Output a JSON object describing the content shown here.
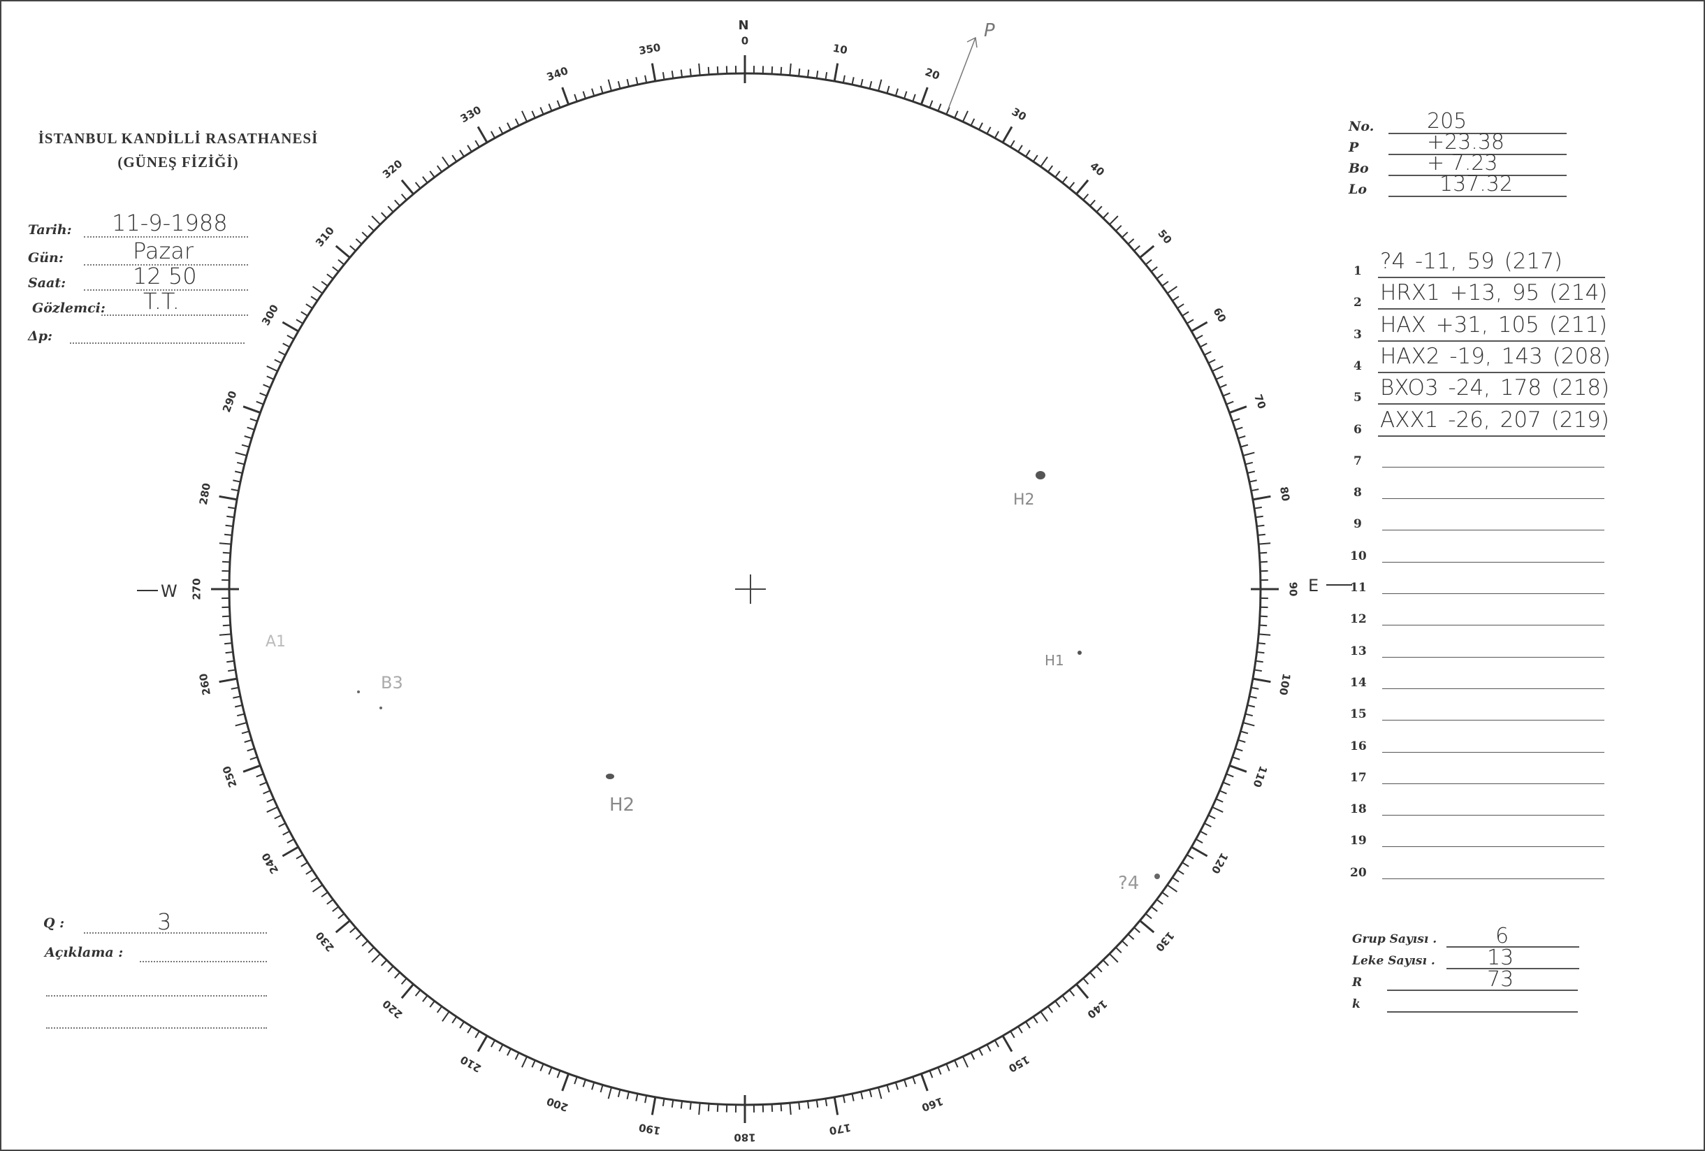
{
  "header": {
    "title": "İSTANBUL KANDİLLİ RASATHANESİ",
    "subtitle": "(GÜNEŞ FİZİĞİ)"
  },
  "observation": {
    "fields": [
      {
        "label": "Tarih:",
        "value": "11-9-1988"
      },
      {
        "label": "Gün:",
        "value": "Pazar"
      },
      {
        "label": "Saat:",
        "value": "12 50"
      },
      {
        "label": "Gözlemci:",
        "value": "T.T."
      },
      {
        "label": "Δp:",
        "value": ""
      }
    ]
  },
  "params": [
    {
      "label": "No.",
      "value": "205"
    },
    {
      "label": "P",
      "value": "+23.38"
    },
    {
      "label": "Bo",
      "value": "+ 7.23"
    },
    {
      "label": "Lo",
      "value": "137.32"
    }
  ],
  "groups": [
    {
      "n": "1",
      "value": "?4   -11, 59 (217)"
    },
    {
      "n": "2",
      "value": "HRX1 +13, 95 (214)"
    },
    {
      "n": "3",
      "value": "HAX  +31, 105 (211)"
    },
    {
      "n": "4",
      "value": "HAX2 -19, 143 (208)"
    },
    {
      "n": "5",
      "value": "BXO3 -24, 178 (218)"
    },
    {
      "n": "6",
      "value": "AXX1 -26, 207 (219)"
    },
    {
      "n": "7",
      "value": ""
    },
    {
      "n": "8",
      "value": ""
    },
    {
      "n": "9",
      "value": ""
    },
    {
      "n": "10",
      "value": ""
    },
    {
      "n": "11",
      "value": ""
    },
    {
      "n": "12",
      "value": ""
    },
    {
      "n": "13",
      "value": ""
    },
    {
      "n": "14",
      "value": ""
    },
    {
      "n": "15",
      "value": ""
    },
    {
      "n": "16",
      "value": ""
    },
    {
      "n": "17",
      "value": ""
    },
    {
      "n": "18",
      "value": ""
    },
    {
      "n": "19",
      "value": ""
    },
    {
      "n": "20",
      "value": ""
    }
  ],
  "summary": [
    {
      "label": "Grup Sayısı .",
      "value": "6"
    },
    {
      "label": "Leke Sayısı .",
      "value": "13"
    },
    {
      "label": "R",
      "value": "73"
    },
    {
      "label": "k",
      "value": ""
    }
  ],
  "quality": {
    "label": "Q :",
    "value": "3",
    "remarks_label": "Açıklama :"
  },
  "dial": {
    "north": "N",
    "east": "E",
    "west": "W",
    "pole": "P",
    "labels": [
      "0",
      "10",
      "20",
      "30",
      "40",
      "50",
      "60",
      "70",
      "80",
      "90",
      "100",
      "110",
      "120",
      "130",
      "140",
      "150",
      "160",
      "170",
      "180",
      "190",
      "200",
      "210",
      "220",
      "230",
      "240",
      "250",
      "260",
      "270",
      "280",
      "290",
      "300",
      "310",
      "320",
      "330",
      "340",
      "350"
    ]
  },
  "sketch": {
    "spots": [
      {
        "label": "H2"
      },
      {
        "label": "H1"
      },
      {
        "label": "H2"
      },
      {
        "label": "?4"
      },
      {
        "label": "B3"
      },
      {
        "label": "A1"
      }
    ]
  }
}
